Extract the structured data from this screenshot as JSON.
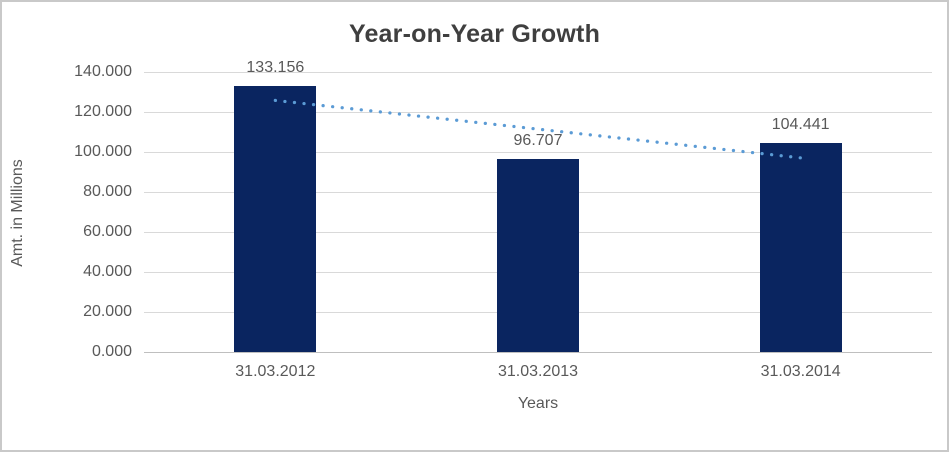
{
  "chart_data": {
    "type": "bar",
    "title": "Year-on-Year Growth",
    "xlabel": "Years",
    "ylabel": "Amt. in Millions",
    "categories": [
      "31.03.2012",
      "31.03.2013",
      "31.03.2014"
    ],
    "values": [
      133.156,
      96.707,
      104.441
    ],
    "data_labels": [
      "133.156",
      "96.707",
      "104.441"
    ],
    "ylim": [
      0,
      140
    ],
    "ytick_step": 20,
    "ytick_labels": [
      "0.000",
      "20.000",
      "40.000",
      "60.000",
      "80.000",
      "100.000",
      "120.000",
      "140.000"
    ],
    "grid": true,
    "legend": "none",
    "trendline": {
      "type": "linear",
      "style": "dotted"
    },
    "colors": {
      "bar": "#0a2560",
      "trendline": "#5b9bd5",
      "gridline": "#d9d9d9",
      "axis_line": "#bfbfbf",
      "title_text": "#3f3f3f",
      "label_text": "#595959",
      "border": "#c9c9c9",
      "background": "#ffffff"
    }
  }
}
